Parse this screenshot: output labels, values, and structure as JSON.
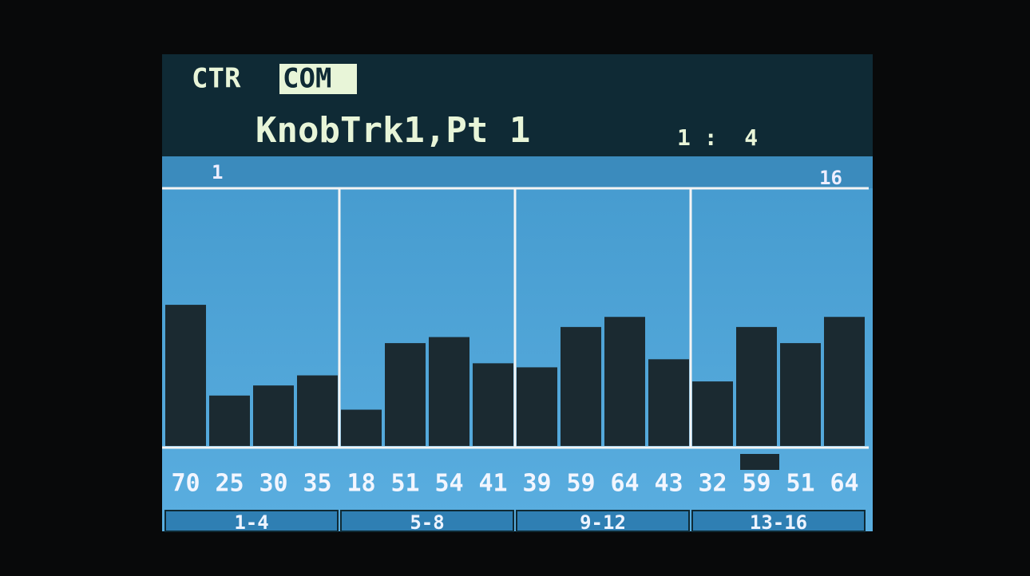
{
  "header": {
    "tabs": [
      "CTR",
      "COM"
    ],
    "title": "KnobTrk1,Pt 1",
    "position": "1 :  4"
  },
  "chart_data": {
    "type": "bar",
    "first_step": "1",
    "last_step": "16",
    "values": [
      70,
      25,
      30,
      35,
      18,
      51,
      54,
      41,
      39,
      59,
      64,
      43,
      32,
      59,
      51,
      64
    ],
    "ylim": [
      0,
      127
    ],
    "color": "#1b2a31",
    "groups": [
      "1-4",
      "5-8",
      "9-12",
      "13-16"
    ]
  }
}
